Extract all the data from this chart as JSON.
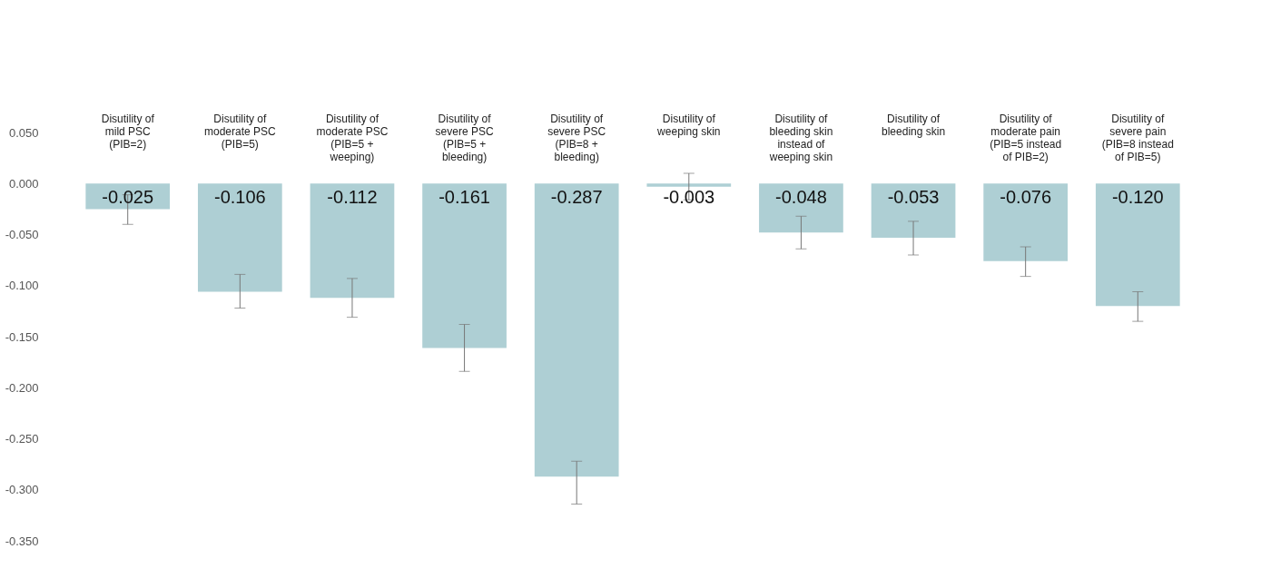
{
  "chart_data": {
    "type": "bar",
    "categories": [
      "Disutility of mild PSC (PIB=2)",
      "Disutility of moderate PSC (PIB=5)",
      "Disutility of moderate PSC (PIB=5 + weeping)",
      "Disutility of severe PSC (PIB=5 + bleeding)",
      "Disutility of severe PSC (PIB=8 + bleeding)",
      "Disutility of weeping skin",
      "Disutility of bleeding skin instead of weeping skin",
      "Disutility of bleeding skin",
      "Disutility of moderate pain (PIB=5 instead of PIB=2)",
      "Disutility of severe pain (PIB=8 instead of PIB=5)"
    ],
    "values": [
      -0.025,
      -0.106,
      -0.112,
      -0.161,
      -0.287,
      -0.003,
      -0.048,
      -0.053,
      -0.076,
      -0.12
    ],
    "errors": [
      [
        -0.04,
        -0.011
      ],
      [
        -0.122,
        -0.089
      ],
      [
        -0.131,
        -0.093
      ],
      [
        -0.184,
        -0.138
      ],
      [
        -0.314,
        -0.272
      ],
      [
        -0.016,
        0.01
      ],
      [
        -0.064,
        -0.032
      ],
      [
        -0.07,
        -0.037
      ],
      [
        -0.091,
        -0.062
      ],
      [
        -0.135,
        -0.106
      ]
    ],
    "color": "#aecfd4",
    "ylim": [
      -0.35,
      0.05
    ],
    "yticks": [
      {
        "value": 0.05,
        "label": "0.050"
      },
      {
        "value": 0,
        "label": "0.000"
      },
      {
        "value": -0.05,
        "label": "-0.050"
      },
      {
        "value": -0.1,
        "label": "-0.100"
      },
      {
        "value": -0.15,
        "label": "-0.150"
      },
      {
        "value": -0.2,
        "label": "-0.200"
      },
      {
        "value": -0.25,
        "label": "-0.250"
      },
      {
        "value": -0.3,
        "label": "-0.300"
      },
      {
        "value": -0.35,
        "label": "-0.350"
      }
    ],
    "value_labels": [
      "-0.025",
      "-0.106",
      "-0.112",
      "-0.161",
      "-0.287",
      "-0.003",
      "-0.048",
      "-0.053",
      "-0.076",
      "-0.120"
    ],
    "grid": false
  }
}
